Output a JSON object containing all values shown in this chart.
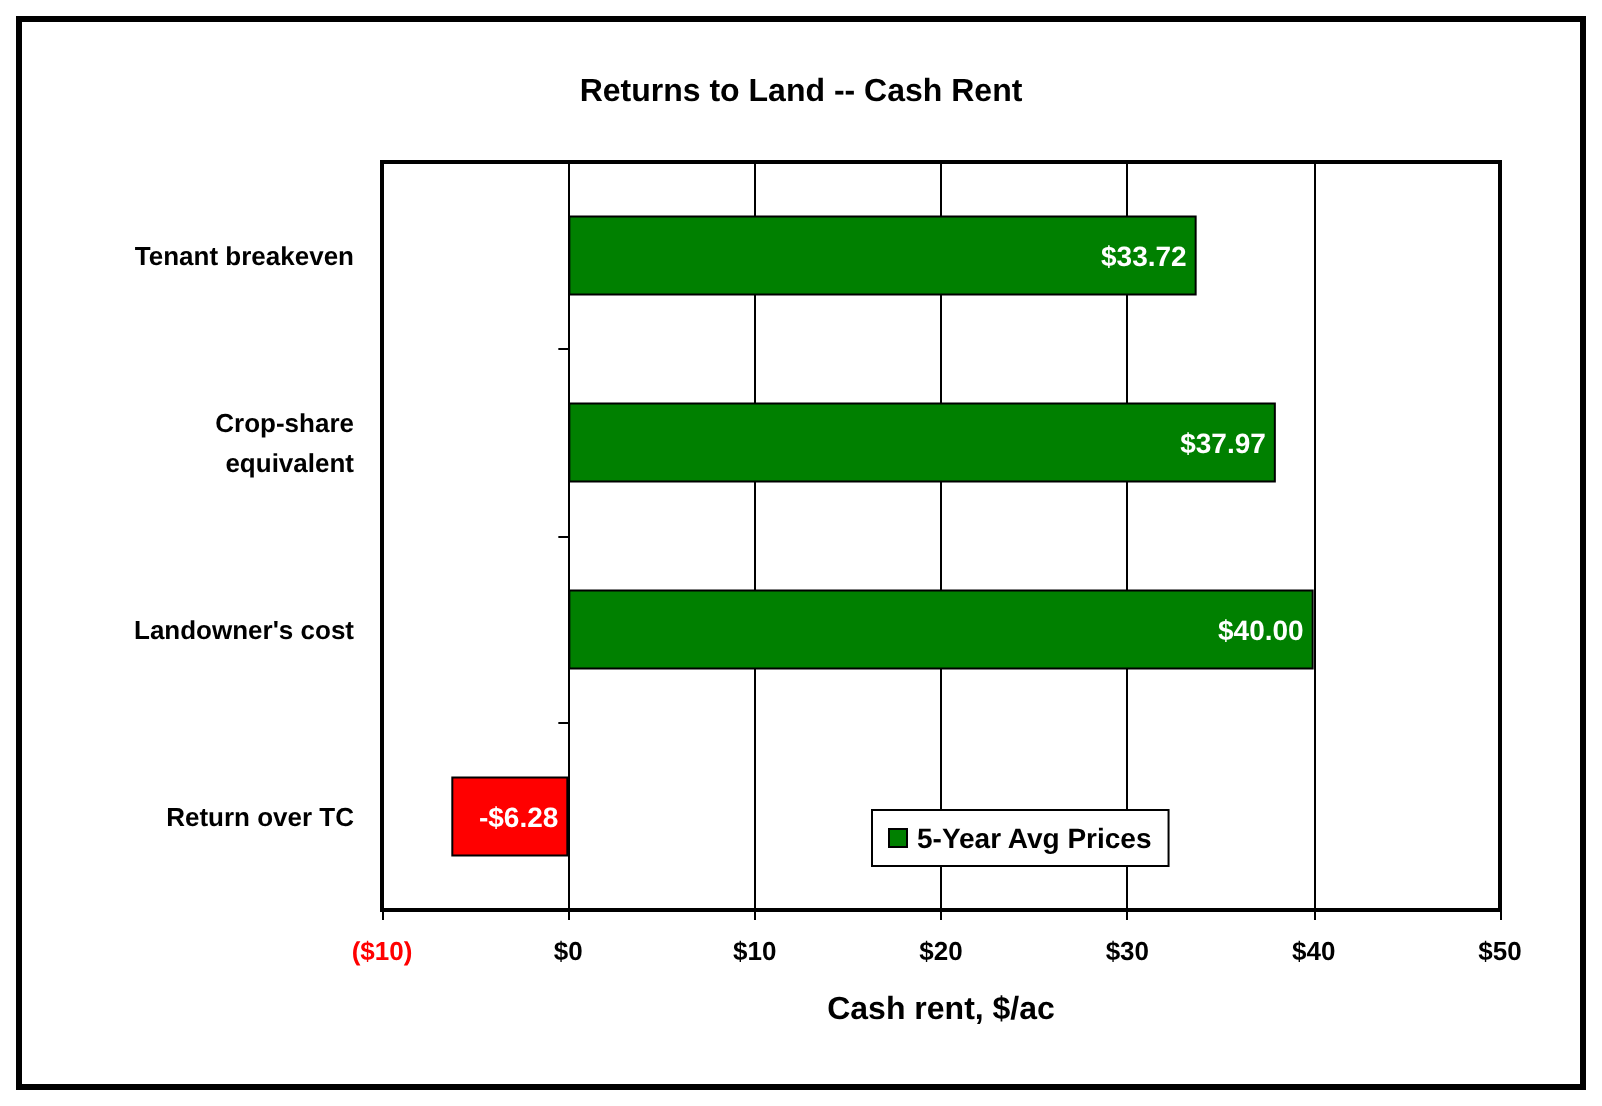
{
  "chart_data": {
    "type": "bar",
    "orientation": "horizontal",
    "title": "Returns to Land -- Cash Rent",
    "xlabel": "Cash rent, $/ac",
    "categories": [
      "Tenant breakeven",
      "Crop-share\nequivalent",
      "Landowner's cost",
      "Return over TC"
    ],
    "series": [
      {
        "name": "5-Year Avg Prices",
        "color": "#008000",
        "colors": [
          "#008000",
          "#008000",
          "#008000",
          "#ff0000"
        ],
        "values": [
          33.72,
          37.97,
          40.0,
          -6.28
        ],
        "value_labels": [
          "$33.72",
          "$37.97",
          "$40.00",
          "-$6.28"
        ]
      }
    ],
    "xlim": [
      -10,
      50
    ],
    "xticks": [
      {
        "value": -10,
        "label": "($10)"
      },
      {
        "value": 0,
        "label": "$0"
      },
      {
        "value": 10,
        "label": "$10"
      },
      {
        "value": 20,
        "label": "$20"
      },
      {
        "value": 30,
        "label": "$30"
      },
      {
        "value": 40,
        "label": "$40"
      },
      {
        "value": 50,
        "label": "$50"
      }
    ],
    "grid": "x",
    "legend": "bottom right"
  }
}
